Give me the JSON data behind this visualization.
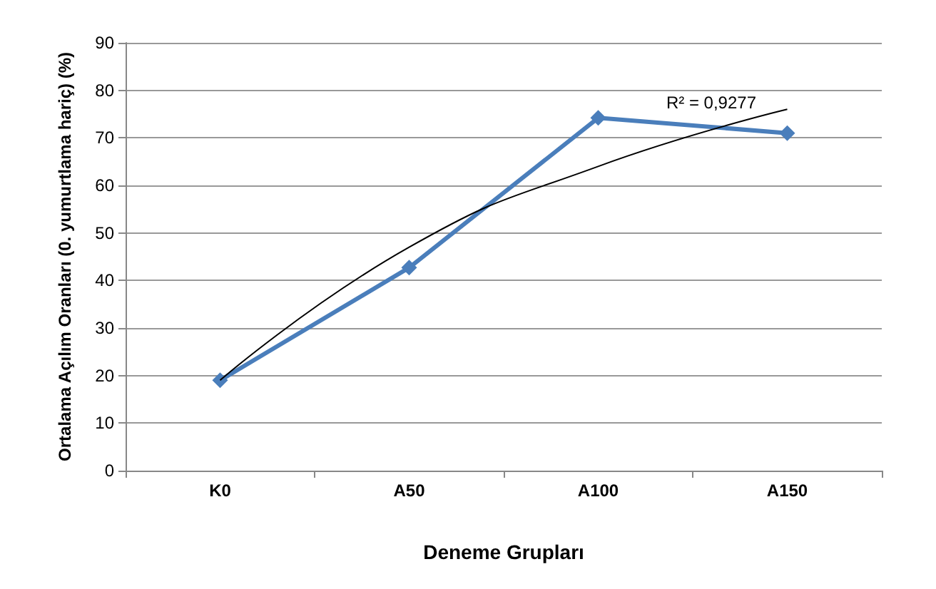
{
  "chart_data": {
    "type": "line",
    "xlabel": "Deneme Grupları",
    "ylabel": "Ortalama Açılım Oranları (0. yumurtlama hariç) (%)",
    "categories": [
      "K0",
      "A50",
      "A100",
      "A150"
    ],
    "series": [
      {
        "color": "#4a7ebb",
        "values": [
          19,
          42.7,
          74.2,
          71
        ],
        "marker": "diamond"
      },
      {
        "type": "line",
        "color": "#000000",
        "x": [
          "K0",
          "A50",
          "A100",
          "A150"
        ],
        "values": [
          19,
          47,
          64,
          76
        ],
        "marker": "none"
      }
    ],
    "annotations": [
      "R² = 0,9277"
    ],
    "ylim": [
      0,
      90
    ],
    "yticks": [
      0,
      10,
      20,
      30,
      40,
      50,
      60,
      70,
      80,
      90
    ],
    "grid": "y"
  }
}
